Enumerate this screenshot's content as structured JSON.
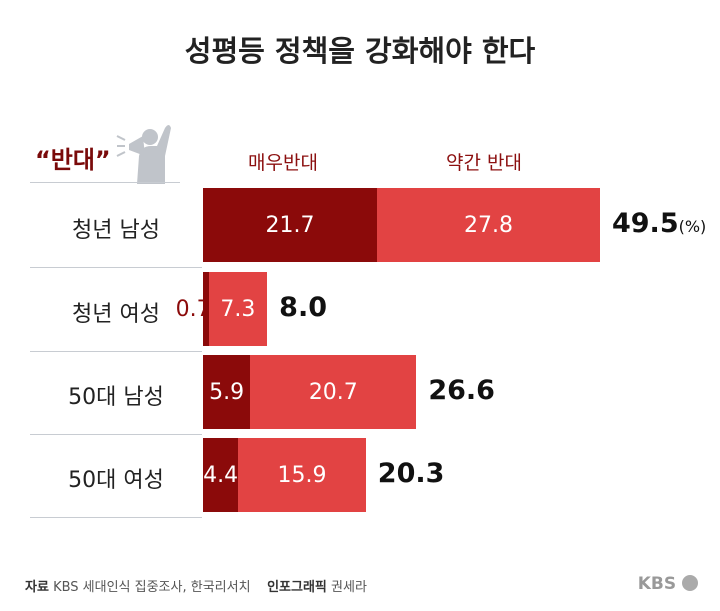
{
  "title": "성평등 정책을 강화해야 한다",
  "legend_header": "“반대”",
  "unit": "(%)",
  "source_label": "자료",
  "source_text": "KBS 세대인식 집중조사, 한국리서치",
  "credit_label": "인포그래픽",
  "credit_text": "권세라",
  "logo": "KBS",
  "colors": {
    "strong": "#8b0a0a",
    "somewhat": "#e24343"
  },
  "chart_data": {
    "type": "bar",
    "orientation": "horizontal",
    "stacked": true,
    "categories": [
      "청년 남성",
      "청년 여성",
      "50대 남성",
      "50대 여성"
    ],
    "series": [
      {
        "name": "매우반대",
        "values": [
          21.7,
          0.7,
          5.9,
          4.4
        ]
      },
      {
        "name": "약간 반대",
        "values": [
          27.8,
          7.3,
          20.7,
          15.9
        ]
      }
    ],
    "totals": [
      "49.5",
      "8.0",
      "26.6",
      "20.3"
    ],
    "labels": [
      [
        "21.7",
        "27.8"
      ],
      [
        "0.7",
        "7.3"
      ],
      [
        "5.9",
        "20.7"
      ],
      [
        "4.4",
        "15.9"
      ]
    ],
    "legend": "top"
  }
}
